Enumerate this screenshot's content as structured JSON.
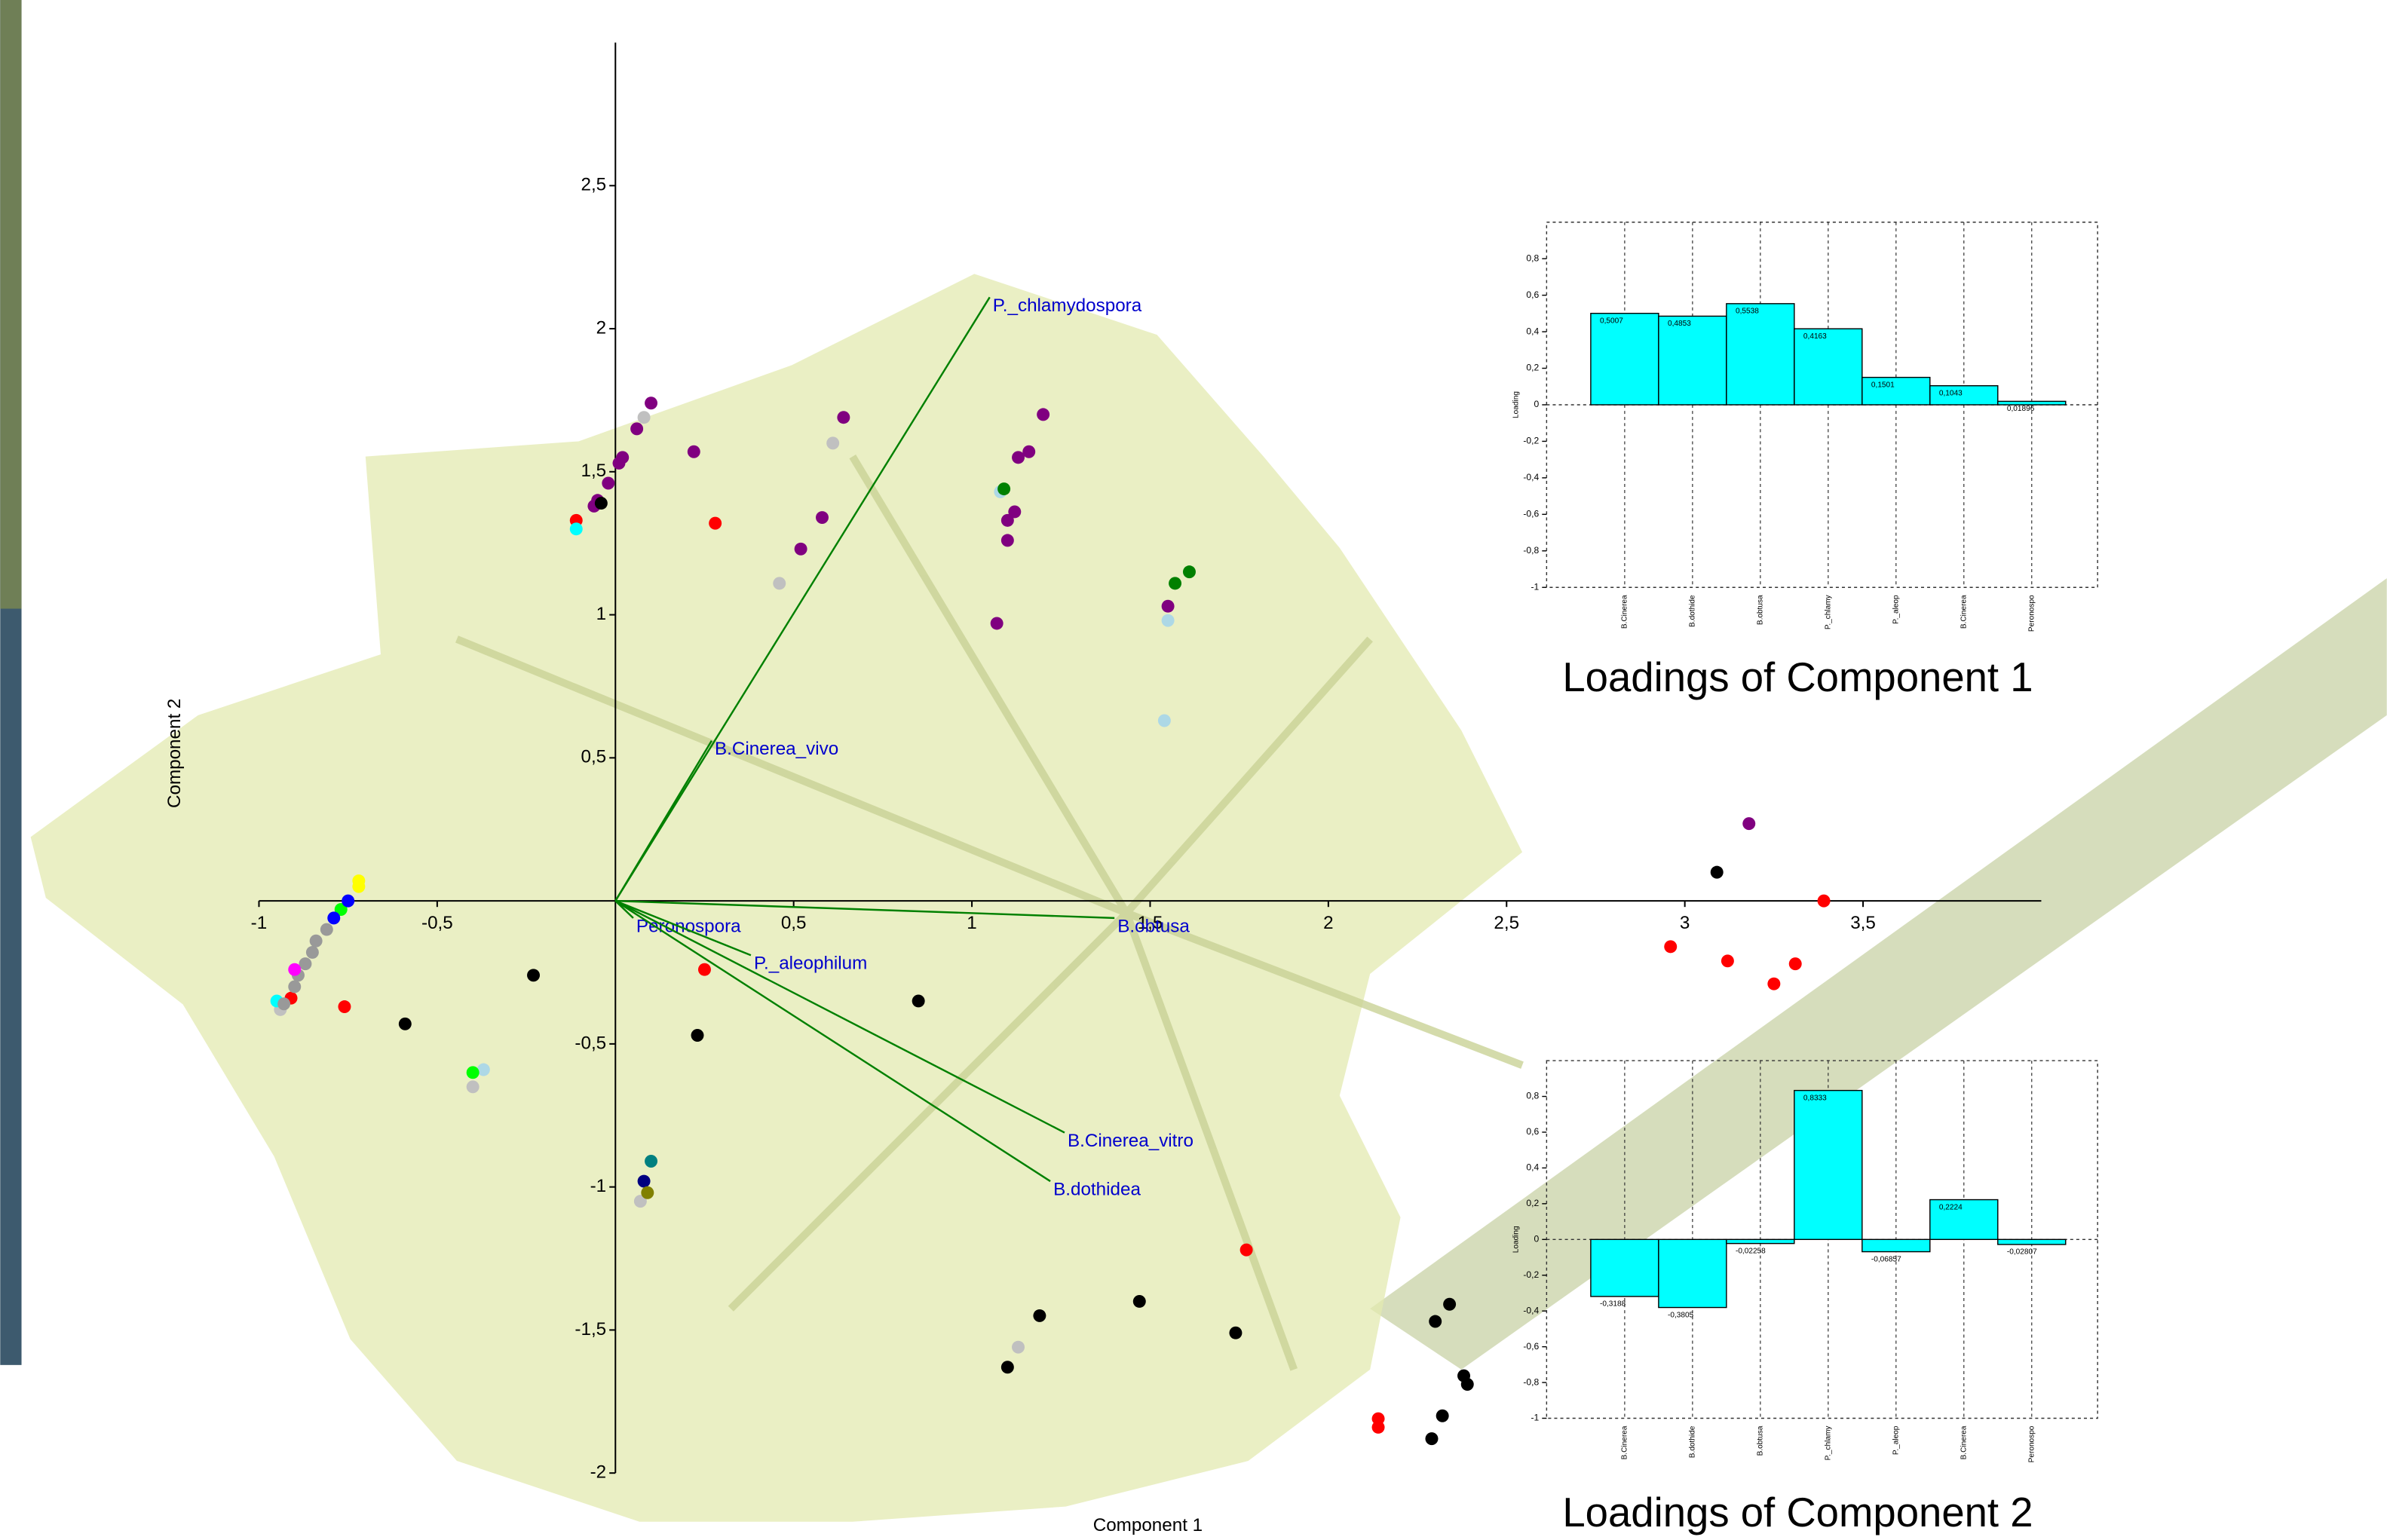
{
  "chart_data": [
    {
      "type": "scatter",
      "xlabel": "Component 1",
      "ylabel": "Component 2",
      "xlim": [
        -1,
        4
      ],
      "ylim": [
        -2,
        3
      ],
      "xticks": [
        -1,
        {
          "value": -0.5,
          "label": "-0,5"
        },
        {
          "value": 0.5,
          "label": "0,5"
        },
        1,
        {
          "value": 1.5,
          "label": "1,5"
        },
        2,
        {
          "value": 2.5,
          "label": "2,5"
        },
        3,
        {
          "value": 3.5,
          "label": "3,5"
        }
      ],
      "yticks": [
        {
          "value": 2.5,
          "label": "2,5"
        },
        2,
        {
          "value": 1.5,
          "label": "1,5"
        },
        1,
        {
          "value": 0.5,
          "label": "0,5"
        },
        {
          "value": -0.5,
          "label": "-0,5"
        },
        -1,
        {
          "value": -1.5,
          "label": "-1,5"
        },
        -2
      ],
      "series": [
        {
          "color": "#800080",
          "x": [
            0.1,
            0.06,
            0.02,
            0.01,
            -0.02,
            -0.05,
            -0.06,
            0.22,
            0.64,
            0.58,
            0.52,
            1.2,
            1.16,
            1.13,
            1.12,
            1.1,
            1.1,
            1.07,
            1.55,
            3.18
          ],
          "values": [
            1.74,
            1.65,
            1.55,
            1.53,
            1.46,
            1.4,
            1.38,
            1.57,
            1.69,
            1.34,
            1.23,
            1.7,
            1.57,
            1.55,
            1.36,
            1.33,
            1.26,
            0.97,
            1.03,
            0.27
          ]
        },
        {
          "color": "#c0c0c0",
          "x": [
            0.08,
            0.61,
            0.46,
            -0.4,
            0.07,
            1.13,
            -0.94
          ],
          "values": [
            1.69,
            1.6,
            1.11,
            -0.65,
            -1.05,
            -1.56,
            -0.38
          ]
        },
        {
          "color": "#add8e6",
          "x": [
            1.08,
            1.55,
            1.54,
            -0.37
          ],
          "values": [
            1.43,
            0.98,
            0.63,
            -0.59
          ]
        },
        {
          "color": "#000000",
          "x": [
            -0.04,
            3.09,
            -0.23,
            -0.59,
            0.85,
            0.23,
            1.19,
            1.1,
            1.47,
            1.74,
            2.34,
            2.3,
            2.38,
            2.39,
            2.32,
            2.29
          ],
          "values": [
            1.39,
            0.1,
            -0.26,
            -0.43,
            -0.35,
            -0.47,
            -1.45,
            -1.63,
            -1.4,
            -1.51,
            -1.41,
            -1.47,
            -1.66,
            -1.69,
            -1.8,
            -1.88
          ]
        },
        {
          "color": "#ff0000",
          "x": [
            -0.11,
            0.28,
            3.39,
            2.96,
            3.12,
            3.31,
            3.25,
            0.25,
            -0.76,
            1.77,
            2.14,
            2.14,
            -0.91
          ],
          "values": [
            1.33,
            1.32,
            0.0,
            -0.16,
            -0.21,
            -0.22,
            -0.29,
            -0.24,
            -0.37,
            -1.22,
            -1.81,
            -1.84,
            -0.34
          ]
        },
        {
          "color": "#008000",
          "x": [
            1.09,
            1.61,
            1.57
          ],
          "values": [
            1.44,
            1.15,
            1.11
          ]
        },
        {
          "color": "#00ffff",
          "x": [
            -0.11,
            -0.95
          ],
          "values": [
            1.3,
            -0.35
          ]
        },
        {
          "color": "#008080",
          "x": [
            0.1
          ],
          "values": [
            -0.91
          ]
        },
        {
          "color": "#000080",
          "x": [
            0.08
          ],
          "values": [
            -0.98
          ]
        },
        {
          "color": "#808000",
          "x": [
            0.09
          ],
          "values": [
            -1.02
          ]
        },
        {
          "color": "#00ff00",
          "x": [
            -0.4,
            -0.77
          ],
          "values": [
            -0.6,
            -0.03
          ]
        },
        {
          "color": "#ffff00",
          "x": [
            -0.72,
            -0.72
          ],
          "values": [
            0.07,
            0.05
          ]
        },
        {
          "color": "#0000ff",
          "x": [
            -0.75,
            -0.79
          ],
          "values": [
            0.0,
            -0.06
          ]
        },
        {
          "color": "#999999",
          "x": [
            -0.81,
            -0.84,
            -0.85,
            -0.87,
            -0.89,
            -0.9,
            -0.93
          ],
          "values": [
            -0.1,
            -0.14,
            -0.18,
            -0.22,
            -0.26,
            -0.3,
            -0.36
          ]
        },
        {
          "color": "#ff00ff",
          "x": [
            -0.9
          ],
          "values": [
            -0.24
          ]
        }
      ],
      "vectors": [
        {
          "label": "P._chlamydospora",
          "x": 1.05,
          "y": 2.11
        },
        {
          "label": "B.Cinerea_vivo",
          "x": 0.27,
          "y": 0.56
        },
        {
          "label": "Peronospora",
          "x": 0.05,
          "y": -0.06
        },
        {
          "label": "P._aleophilum",
          "x": 0.38,
          "y": -0.19
        },
        {
          "label": "B.obtusa",
          "x": 1.4,
          "y": -0.06
        },
        {
          "label": "B.Cinerea_vitro",
          "x": 1.26,
          "y": -0.81
        },
        {
          "label": "B.dothidea",
          "x": 1.22,
          "y": -0.98
        }
      ],
      "vector_color": "#008000",
      "label_color": "#0000cc"
    },
    {
      "type": "bar",
      "title": "Loadings of Component 1",
      "ylabel": "Loading",
      "color": "#00ffff",
      "categories": [
        "B.Cinerea",
        "B.dothide",
        "B.obtusa",
        "P._chlamy",
        "P._aleop",
        "B.Cinerea",
        "Peronospo"
      ],
      "values": [
        0.5007,
        0.4853,
        0.5538,
        0.4163,
        0.1501,
        0.1043,
        0.01896
      ],
      "value_labels": [
        "0,5007",
        "0,4853",
        "0,5538",
        "0,4163",
        "0,1501",
        "0,1043",
        "0,01896"
      ],
      "ylim": [
        -1,
        1
      ],
      "yticks": [
        -1,
        {
          "value": -0.8,
          "label": "-0,8"
        },
        {
          "value": -0.6,
          "label": "-0,6"
        },
        {
          "value": -0.4,
          "label": "-0,4"
        },
        {
          "value": -0.2,
          "label": "-0,2"
        },
        0,
        {
          "value": 0.2,
          "label": "0,2"
        },
        {
          "value": 0.4,
          "label": "0,4"
        },
        {
          "value": 0.6,
          "label": "0,6"
        },
        {
          "value": 0.8,
          "label": "0,8"
        }
      ]
    },
    {
      "type": "bar",
      "title": "Loadings of Component 2",
      "ylabel": "Loading",
      "color": "#00ffff",
      "categories": [
        "B.Cinerea",
        "B.dothide",
        "B.obtusa",
        "P._chlamy",
        "P._aleop",
        "B.Cinerea",
        "Peronospo"
      ],
      "values": [
        -0.3188,
        -0.3805,
        -0.02258,
        0.8333,
        -0.06857,
        0.2224,
        -0.02807
      ],
      "value_labels": [
        "-0,3188",
        "-0,3805",
        "-0,02258",
        "0,8333",
        "-0,06857",
        "0,2224",
        "-0,02807"
      ],
      "ylim": [
        -1,
        1
      ],
      "yticks": [
        -1,
        {
          "value": -0.8,
          "label": "-0,8"
        },
        {
          "value": -0.6,
          "label": "-0,6"
        },
        {
          "value": -0.4,
          "label": "-0,4"
        },
        {
          "value": -0.2,
          "label": "-0,2"
        },
        0,
        {
          "value": 0.2,
          "label": "0,2"
        },
        {
          "value": 0.4,
          "label": "0,4"
        },
        {
          "value": 0.6,
          "label": "0,6"
        },
        {
          "value": 0.8,
          "label": "0,8"
        }
      ]
    }
  ]
}
